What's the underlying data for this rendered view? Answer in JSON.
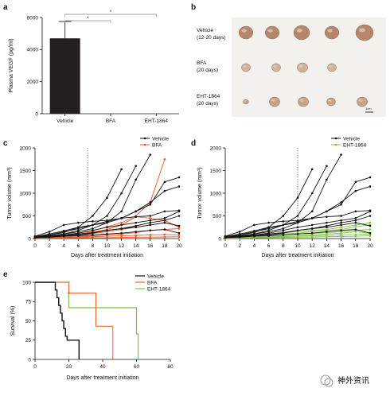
{
  "panels": {
    "a": "a",
    "b": "b",
    "c": "c",
    "d": "d",
    "e": "e"
  },
  "photo": {
    "groups": [
      {
        "label": "Vehicle",
        "sub": "(12-20 days)",
        "count": 5
      },
      {
        "label": "BFA",
        "sub": "(20 days)",
        "count": 4
      },
      {
        "label": "EHT-1864",
        "sub": "(20 days)",
        "count": 5
      }
    ],
    "scalebar": "1cm"
  },
  "watermark": {
    "text": "神外资讯"
  },
  "colors": {
    "vehicle": "#111111",
    "bfa": "#e8582a",
    "eht": "#7dc242",
    "bar": "#231f20"
  },
  "chart_data": [
    {
      "id": "a",
      "type": "bar",
      "ylabel": "Plasma VEGF (pg/ml)",
      "categories": [
        "Vehicle",
        "BFA",
        "EHT-1864"
      ],
      "values": [
        4700,
        0,
        0
      ],
      "error": [
        1050,
        0,
        0
      ],
      "ylim": [
        0,
        6000
      ],
      "yticks": [
        0,
        2000,
        4000,
        6000
      ],
      "significance": [
        {
          "from": 0,
          "to": 1,
          "label": "*"
        },
        {
          "from": 0,
          "to": 2,
          "label": "*"
        }
      ]
    },
    {
      "id": "c",
      "type": "line",
      "xlabel": "Days after treatment initiation",
      "ylabel": "Tumor volume (mm³)",
      "xlim": [
        0,
        20
      ],
      "ylim": [
        0,
        2000
      ],
      "xticks": [
        0,
        2,
        4,
        6,
        8,
        10,
        12,
        14,
        16,
        18,
        20
      ],
      "yticks": [
        0,
        500,
        1000,
        1500,
        2000
      ],
      "marker_day": 7.3,
      "legend": [
        "Vehicle",
        "BFA"
      ],
      "series": [
        {
          "group": "Vehicle",
          "x": [
            0,
            2,
            4,
            6,
            8,
            10,
            12
          ],
          "y": [
            50,
            80,
            130,
            250,
            500,
            900,
            1530
          ]
        },
        {
          "group": "Vehicle",
          "x": [
            0,
            2,
            4,
            6,
            8,
            10,
            12,
            14
          ],
          "y": [
            30,
            60,
            100,
            180,
            300,
            500,
            1000,
            1600
          ]
        },
        {
          "group": "Vehicle",
          "x": [
            0,
            2,
            4,
            6,
            8,
            10,
            12,
            14,
            16
          ],
          "y": [
            20,
            60,
            100,
            150,
            220,
            350,
            600,
            1300,
            1850
          ]
        },
        {
          "group": "Vehicle",
          "x": [
            0,
            2,
            4,
            6,
            8,
            10,
            12,
            14,
            16,
            18,
            20
          ],
          "y": [
            40,
            100,
            170,
            250,
            300,
            380,
            450,
            600,
            750,
            1250,
            1350
          ]
        },
        {
          "group": "Vehicle",
          "x": [
            0,
            2,
            4,
            6,
            8,
            10,
            12,
            14,
            16,
            18,
            20
          ],
          "y": [
            30,
            80,
            150,
            220,
            300,
            350,
            450,
            600,
            800,
            1050,
            1150
          ]
        },
        {
          "group": "Vehicle",
          "x": [
            0,
            2,
            4,
            6,
            8,
            10,
            12,
            14,
            16,
            18,
            20
          ],
          "y": [
            50,
            150,
            300,
            350,
            380,
            400,
            450,
            480,
            500,
            600,
            620
          ]
        },
        {
          "group": "Vehicle",
          "x": [
            0,
            2,
            4,
            6,
            8,
            10,
            12,
            14,
            16,
            18,
            20
          ],
          "y": [
            20,
            50,
            80,
            120,
            180,
            250,
            300,
            350,
            400,
            450,
            600
          ]
        },
        {
          "group": "Vehicle",
          "x": [
            0,
            2,
            4,
            6,
            8,
            10,
            12,
            14,
            16,
            18,
            20
          ],
          "y": [
            30,
            40,
            60,
            80,
            120,
            180,
            220,
            280,
            350,
            400,
            500
          ]
        },
        {
          "group": "Vehicle",
          "x": [
            0,
            2,
            4,
            6,
            8,
            10,
            12,
            14,
            16,
            18,
            20
          ],
          "y": [
            40,
            60,
            80,
            100,
            130,
            180,
            220,
            250,
            300,
            350,
            280
          ]
        },
        {
          "group": "Vehicle",
          "x": [
            0,
            2,
            4,
            6,
            8,
            10,
            12,
            14,
            16,
            18,
            20
          ],
          "y": [
            20,
            30,
            50,
            60,
            80,
            100,
            120,
            150,
            180,
            200,
            120
          ]
        },
        {
          "group": "BFA",
          "x": [
            0,
            2,
            4,
            6,
            8,
            10,
            12,
            14,
            16,
            18
          ],
          "y": [
            30,
            50,
            80,
            120,
            170,
            260,
            350,
            500,
            800,
            1750
          ]
        },
        {
          "group": "BFA",
          "x": [
            0,
            2,
            4,
            6,
            8,
            10,
            12,
            14,
            16,
            18,
            20
          ],
          "y": [
            20,
            40,
            60,
            100,
            140,
            200,
            300,
            480,
            450,
            400,
            250
          ]
        },
        {
          "group": "BFA",
          "x": [
            0,
            2,
            4,
            6,
            8,
            10,
            12,
            14,
            16,
            18,
            20
          ],
          "y": [
            10,
            20,
            40,
            70,
            110,
            150,
            200,
            250,
            300,
            350,
            280
          ]
        },
        {
          "group": "BFA",
          "x": [
            0,
            2,
            4,
            6,
            8,
            10,
            12,
            14,
            16,
            18,
            20
          ],
          "y": [
            10,
            20,
            30,
            40,
            60,
            80,
            100,
            130,
            180,
            200,
            220
          ]
        },
        {
          "group": "BFA",
          "x": [
            0,
            2,
            4,
            6,
            8,
            10,
            12,
            14,
            16,
            18,
            20
          ],
          "y": [
            10,
            15,
            20,
            30,
            40,
            50,
            60,
            70,
            80,
            90,
            80
          ]
        },
        {
          "group": "BFA",
          "x": [
            0,
            2,
            4,
            6,
            8,
            10,
            12,
            14,
            16,
            18,
            20
          ],
          "y": [
            5,
            10,
            10,
            15,
            20,
            20,
            25,
            30,
            30,
            35,
            40
          ]
        }
      ]
    },
    {
      "id": "d",
      "type": "line",
      "xlabel": "Days after treatment initiation",
      "ylabel": "Tumor volume (mm³)",
      "xlim": [
        0,
        20
      ],
      "ylim": [
        0,
        2000
      ],
      "xticks": [
        0,
        2,
        4,
        6,
        8,
        10,
        12,
        14,
        16,
        18,
        20
      ],
      "yticks": [
        0,
        500,
        1000,
        1500,
        2000
      ],
      "marker_day": 10,
      "legend": [
        "Vehicle",
        "EHT-1864"
      ],
      "series": [
        {
          "group": "Vehicle",
          "x": [
            0,
            2,
            4,
            6,
            8,
            10,
            12
          ],
          "y": [
            50,
            80,
            130,
            250,
            500,
            900,
            1530
          ]
        },
        {
          "group": "Vehicle",
          "x": [
            0,
            2,
            4,
            6,
            8,
            10,
            12,
            14
          ],
          "y": [
            30,
            60,
            100,
            180,
            300,
            500,
            1000,
            1600
          ]
        },
        {
          "group": "Vehicle",
          "x": [
            0,
            2,
            4,
            6,
            8,
            10,
            12,
            14,
            16
          ],
          "y": [
            20,
            60,
            100,
            150,
            220,
            350,
            600,
            1300,
            1850
          ]
        },
        {
          "group": "Vehicle",
          "x": [
            0,
            2,
            4,
            6,
            8,
            10,
            12,
            14,
            16,
            18,
            20
          ],
          "y": [
            40,
            100,
            170,
            250,
            300,
            380,
            450,
            600,
            750,
            1250,
            1350
          ]
        },
        {
          "group": "Vehicle",
          "x": [
            0,
            2,
            4,
            6,
            8,
            10,
            12,
            14,
            16,
            18,
            20
          ],
          "y": [
            30,
            80,
            150,
            220,
            300,
            350,
            450,
            600,
            800,
            1050,
            1150
          ]
        },
        {
          "group": "Vehicle",
          "x": [
            0,
            2,
            4,
            6,
            8,
            10,
            12,
            14,
            16,
            18,
            20
          ],
          "y": [
            50,
            150,
            300,
            350,
            380,
            400,
            450,
            480,
            500,
            600,
            620
          ]
        },
        {
          "group": "Vehicle",
          "x": [
            0,
            2,
            4,
            6,
            8,
            10,
            12,
            14,
            16,
            18,
            20
          ],
          "y": [
            20,
            50,
            80,
            120,
            180,
            250,
            300,
            350,
            400,
            450,
            600
          ]
        },
        {
          "group": "Vehicle",
          "x": [
            0,
            2,
            4,
            6,
            8,
            10,
            12,
            14,
            16,
            18,
            20
          ],
          "y": [
            30,
            40,
            60,
            80,
            120,
            180,
            220,
            280,
            350,
            400,
            500
          ]
        },
        {
          "group": "Vehicle",
          "x": [
            0,
            2,
            4,
            6,
            8,
            10,
            12,
            14,
            16,
            18,
            20
          ],
          "y": [
            40,
            60,
            80,
            100,
            130,
            180,
            220,
            250,
            300,
            350,
            280
          ]
        },
        {
          "group": "Vehicle",
          "x": [
            0,
            2,
            4,
            6,
            8,
            10,
            12,
            14,
            16,
            18,
            20
          ],
          "y": [
            20,
            30,
            50,
            60,
            80,
            100,
            120,
            150,
            180,
            200,
            120
          ]
        },
        {
          "group": "EHT-1864",
          "x": [
            0,
            2,
            4,
            6,
            8,
            10,
            12,
            14,
            16,
            18,
            20
          ],
          "y": [
            30,
            50,
            70,
            100,
            130,
            150,
            180,
            200,
            250,
            300,
            350
          ]
        },
        {
          "group": "EHT-1864",
          "x": [
            0,
            2,
            4,
            6,
            8,
            10,
            12,
            14,
            16,
            18,
            20
          ],
          "y": [
            20,
            40,
            60,
            80,
            100,
            120,
            150,
            180,
            200,
            260,
            300
          ]
        },
        {
          "group": "EHT-1864",
          "x": [
            0,
            2,
            4,
            6,
            8,
            10,
            12,
            14,
            16,
            18,
            20
          ],
          "y": [
            20,
            30,
            50,
            60,
            80,
            100,
            110,
            130,
            150,
            180,
            200
          ]
        },
        {
          "group": "EHT-1864",
          "x": [
            0,
            2,
            4,
            6,
            8,
            10,
            12,
            14,
            16,
            18,
            20
          ],
          "y": [
            10,
            20,
            30,
            40,
            50,
            60,
            80,
            100,
            120,
            150,
            120
          ]
        },
        {
          "group": "EHT-1864",
          "x": [
            0,
            2,
            4,
            6,
            8,
            10,
            12,
            14,
            16,
            18,
            20
          ],
          "y": [
            10,
            15,
            20,
            30,
            40,
            50,
            60,
            70,
            80,
            90,
            100
          ]
        },
        {
          "group": "EHT-1864",
          "x": [
            0,
            2,
            4,
            6,
            8,
            10,
            12,
            14,
            16,
            18,
            20
          ],
          "y": [
            5,
            10,
            15,
            20,
            25,
            30,
            35,
            40,
            45,
            50,
            60
          ]
        }
      ]
    },
    {
      "id": "e",
      "type": "line",
      "subtype": "survival-step",
      "xlabel": "Days after treatment initiation",
      "ylabel": "Survival (%)",
      "xlim": [
        0,
        80
      ],
      "ylim": [
        0,
        100
      ],
      "xticks": [
        0,
        20,
        40,
        60,
        80
      ],
      "yticks": [
        0,
        25,
        50,
        75,
        100
      ],
      "legend": [
        "Vehicle",
        "BFA",
        "EHT-1864"
      ],
      "series": [
        {
          "name": "Vehicle",
          "x": [
            0,
            12,
            13,
            14,
            15,
            16,
            17,
            18,
            19,
            26
          ],
          "y": [
            100,
            90,
            80,
            70,
            60,
            50,
            40,
            30,
            25,
            0
          ]
        },
        {
          "name": "BFA",
          "x": [
            0,
            20,
            36,
            46
          ],
          "y": [
            100,
            86,
            43,
            0
          ]
        },
        {
          "name": "EHT-1864",
          "x": [
            0,
            20,
            40,
            60,
            61
          ],
          "y": [
            100,
            67,
            67,
            33,
            0
          ]
        }
      ],
      "censor": [
        {
          "series": "EHT-1864",
          "x": 20,
          "y": 100
        },
        {
          "series": "BFA",
          "x": 20,
          "y": 86
        }
      ]
    }
  ]
}
